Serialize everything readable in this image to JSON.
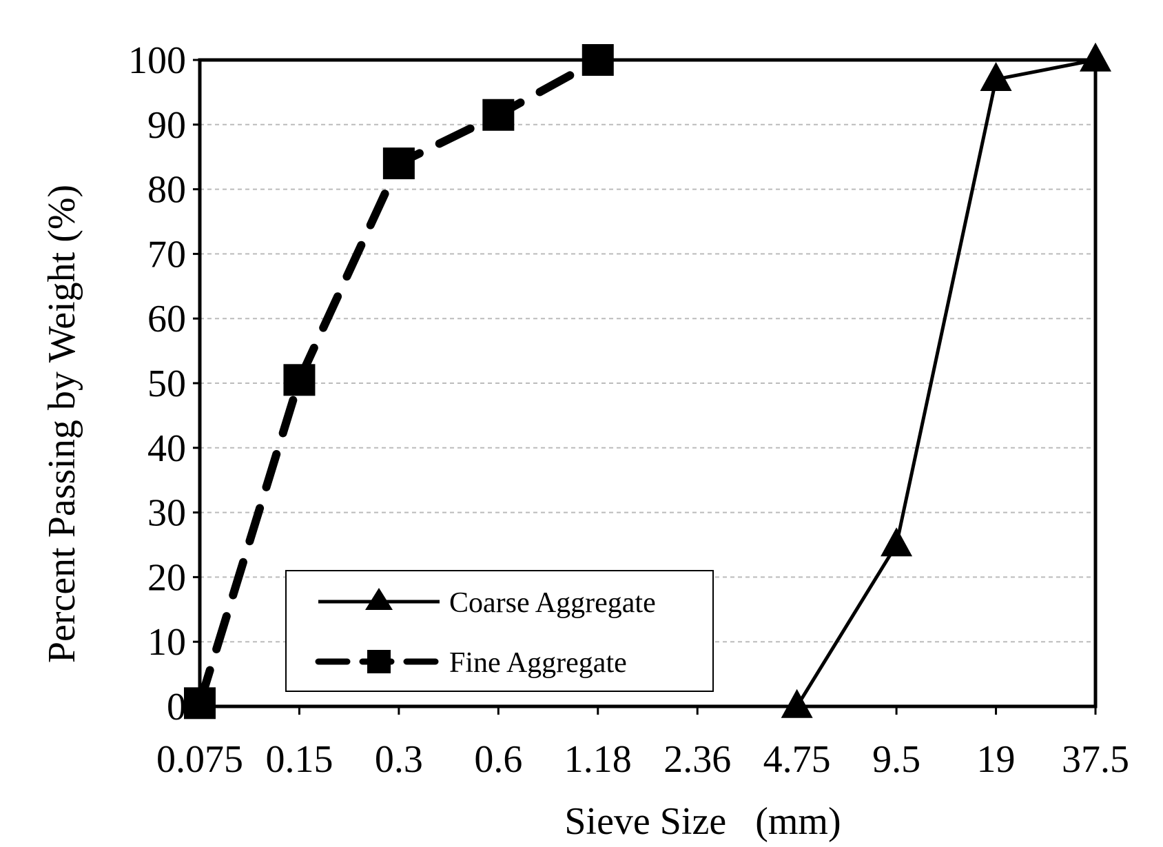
{
  "chart_data": {
    "type": "line",
    "title": "",
    "xlabel": "Sieve Size   (mm)",
    "ylabel": "Percent Passing by Weight (%)",
    "categories": [
      "0.075",
      "0.15",
      "0.3",
      "0.6",
      "1.18",
      "2.36",
      "4.75",
      "9.5",
      "19",
      "37.5"
    ],
    "x_scale": "categorical (log-spaced sieve sizes)",
    "ylim": [
      0,
      100
    ],
    "yticks": [
      "0",
      "10",
      "20",
      "30",
      "40",
      "50",
      "60",
      "70",
      "80",
      "90",
      "100"
    ],
    "grid": "horizontal dashed",
    "legend_position": "bottom-left",
    "series": [
      {
        "name": "Coarse Aggregate",
        "marker": "triangle",
        "line_style": "solid",
        "points": [
          {
            "x": "4.75",
            "y": 0
          },
          {
            "x": "9.5",
            "y": 25
          },
          {
            "x": "19",
            "y": 97
          },
          {
            "x": "37.5",
            "y": 100
          }
        ]
      },
      {
        "name": "Fine Aggregate",
        "marker": "square",
        "line_style": "dashed",
        "points": [
          {
            "x": "0.075",
            "y": 0.5
          },
          {
            "x": "0.15",
            "y": 50.5
          },
          {
            "x": "0.3",
            "y": 84
          },
          {
            "x": "0.6",
            "y": 91.5
          },
          {
            "x": "1.18",
            "y": 100
          }
        ]
      }
    ],
    "colors": {
      "line": "#000000",
      "grid": "#bbbbbb",
      "background": "#ffffff"
    }
  }
}
